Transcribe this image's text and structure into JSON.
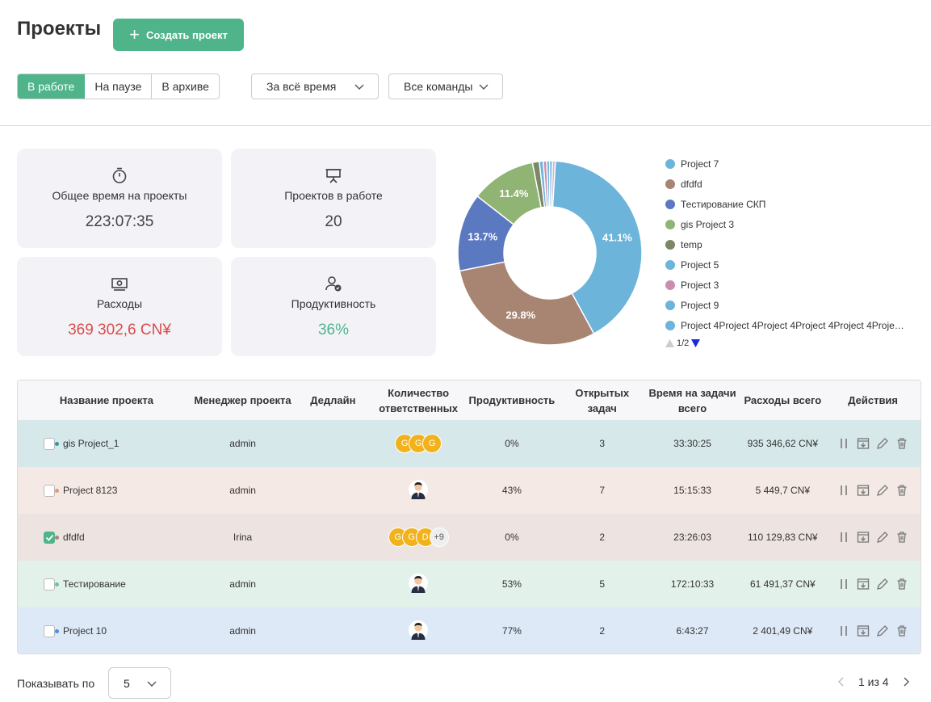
{
  "header": {
    "title": "Проекты",
    "create_label": "Создать проект"
  },
  "status_tabs": [
    {
      "label": "В работе"
    },
    {
      "label": "На паузе"
    },
    {
      "label": "В архиве"
    }
  ],
  "filters": {
    "period": "За всё время",
    "teams": "Все команды"
  },
  "stats": {
    "time": {
      "label": "Общее время на проекты",
      "value": "223:07:35",
      "icon": "stopwatch-icon"
    },
    "projects": {
      "label": "Проектов в работе",
      "value": "20",
      "icon": "presentation-board-icon"
    },
    "expenses": {
      "label": "Расходы",
      "value": "369 302,6 CN¥",
      "icon": "money-icon"
    },
    "productivity": {
      "label": "Продуктивность",
      "value": "36%",
      "icon": "user-check-icon"
    }
  },
  "chart_data": {
    "type": "pie",
    "donut": true,
    "slices": [
      {
        "label": "Project 7",
        "value": 41.1,
        "color": "#6cb4da",
        "shown": "41.1%"
      },
      {
        "label": "dfdfd",
        "value": 29.8,
        "color": "#a88473",
        "shown": "29.8%"
      },
      {
        "label": "Тестирование СКП",
        "value": 13.7,
        "color": "#5b79c0",
        "shown": "13.7%"
      },
      {
        "label": "gis Project 3",
        "value": 11.4,
        "color": "#8fb474",
        "shown": "11.4%"
      },
      {
        "label": "temp",
        "value": 1.2,
        "color": "#7b8766",
        "shown": ""
      },
      {
        "label": "Project 5",
        "value": 0.7,
        "color": "#6cb4da",
        "shown": ""
      },
      {
        "label": "Project 3",
        "value": 0.6,
        "color": "#c98db0",
        "shown": ""
      },
      {
        "label": "Project 9",
        "value": 0.5,
        "color": "#6cb4da",
        "shown": ""
      },
      {
        "label": "Project 4Project 4Project 4Project 4Project 4Proje…",
        "value": 0.5,
        "color": "#6cb4da",
        "shown": ""
      },
      {
        "label": "",
        "value": 0.5,
        "color": "#c9b7d7",
        "shown": ""
      }
    ],
    "legend_page": "1/2"
  },
  "table": {
    "headers": [
      "Название проекта",
      "Менеджер проекта",
      "Дедлайн",
      "Количество ответственных",
      "Продуктивность",
      "Открытых задач",
      "Время на задачи всего",
      "Расходы всего",
      "Действия"
    ],
    "rows": [
      {
        "name": "gis Project_1",
        "dot": "#2a9a9a",
        "bg": "#d7e8ea",
        "checked": false,
        "manager": "admin",
        "deadline": "",
        "avatars": [
          "G",
          "G",
          "G"
        ],
        "more": "",
        "photo": false,
        "productivity": "0%",
        "open": "3",
        "time": "33:30:25",
        "expenses": "935 346,62 CN¥"
      },
      {
        "name": "Project 8123",
        "dot": "#e39a7c",
        "bg": "#f5e9e5",
        "checked": false,
        "manager": "admin",
        "deadline": "",
        "avatars": [],
        "more": "",
        "photo": true,
        "productivity": "43%",
        "open": "7",
        "time": "15:15:33",
        "expenses": "5 449,7 CN¥"
      },
      {
        "name": "dfdfd",
        "dot": "#a88473",
        "bg": "#ede4e1",
        "checked": true,
        "manager": "Irina",
        "deadline": "",
        "avatars": [
          "G",
          "G",
          "D"
        ],
        "more": "+9",
        "photo": false,
        "productivity": "0%",
        "open": "2",
        "time": "23:26:03",
        "expenses": "110 129,83 CN¥"
      },
      {
        "name": "Тестирование",
        "dot": "#6cc49a",
        "bg": "#e2f1ea",
        "checked": false,
        "manager": "admin",
        "deadline": "",
        "avatars": [],
        "more": "",
        "photo": true,
        "productivity": "53%",
        "open": "5",
        "time": "172:10:33",
        "expenses": "61 491,37 CN¥"
      },
      {
        "name": "Project 10",
        "dot": "#4a8fd8",
        "bg": "#dde9f7",
        "checked": false,
        "manager": "admin",
        "deadline": "",
        "avatars": [],
        "more": "",
        "photo": true,
        "productivity": "77%",
        "open": "2",
        "time": "6:43:27",
        "expenses": "2 401,49 CN¥"
      }
    ]
  },
  "footer": {
    "show_label": "Показывать по",
    "page_size": "5",
    "page_info": "1 из 4"
  }
}
